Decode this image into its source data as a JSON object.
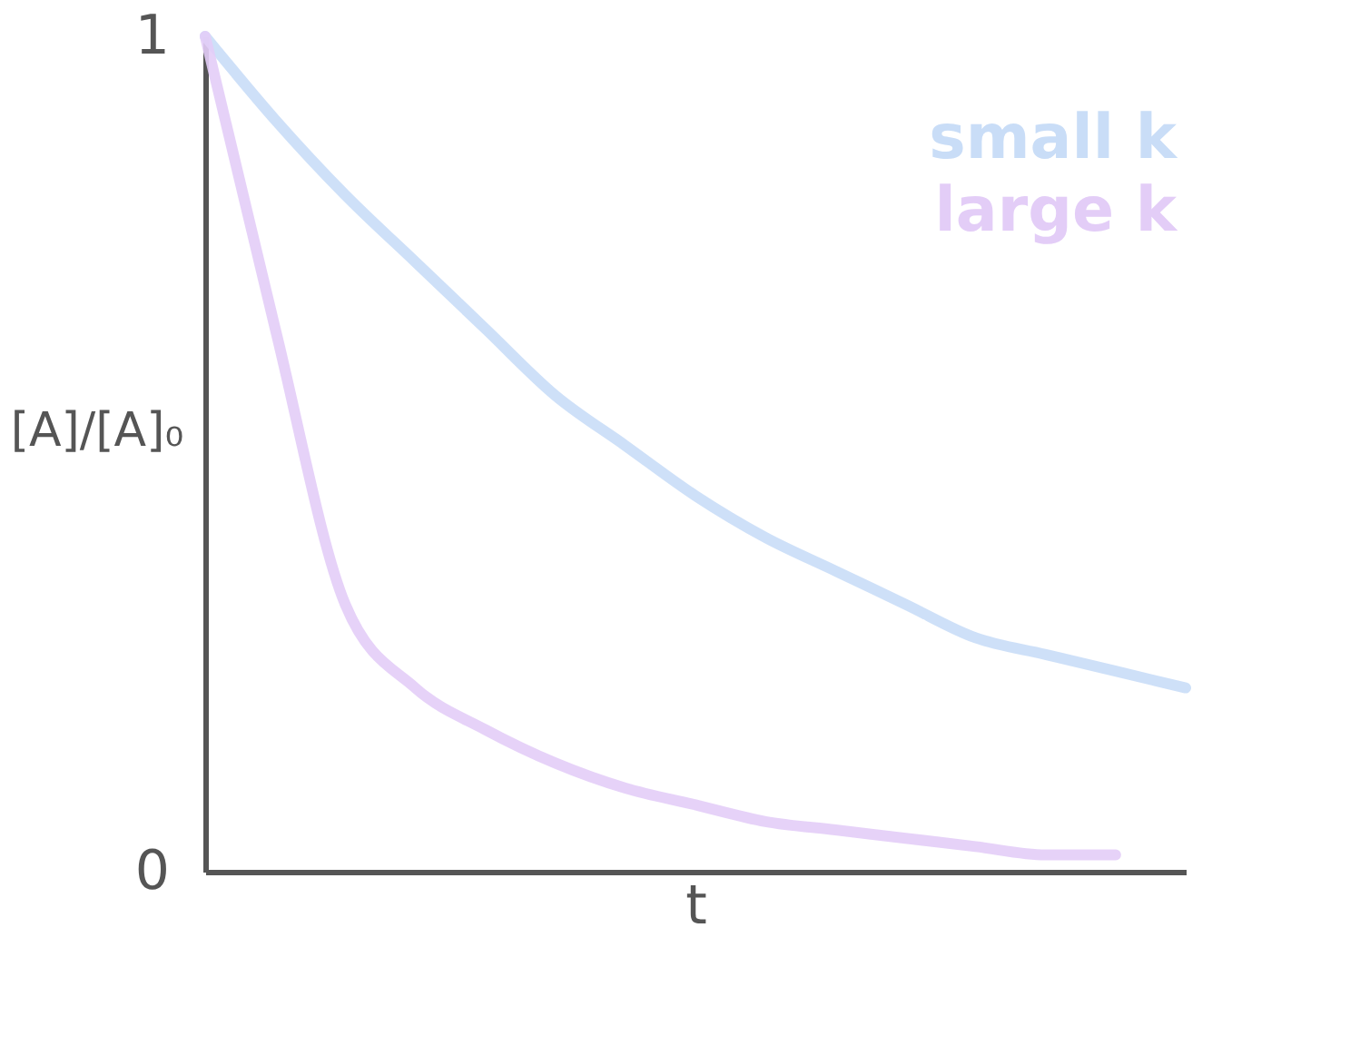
{
  "chart_data": {
    "type": "line",
    "categories": [
      null,
      null,
      null,
      null,
      null,
      null,
      null,
      null,
      null,
      null,
      null,
      null,
      null,
      null,
      null
    ],
    "series": [
      {
        "name": "small k",
        "color": "#c9ddf7",
        "values": [
          1.0,
          0.9,
          0.81,
          0.73,
          0.65,
          0.57,
          0.51,
          0.45,
          0.4,
          0.36,
          0.32,
          0.28,
          0.26,
          0.24,
          0.22
        ]
      },
      {
        "name": "large k",
        "color": "#e3cdf7",
        "values": [
          1.0,
          0.65,
          0.32,
          0.22,
          0.17,
          0.13,
          0.1,
          0.08,
          0.06,
          0.05,
          0.04,
          0.03,
          0.02,
          0.02,
          null
        ]
      }
    ],
    "xlabel": "t",
    "ylabel": "[A]/[A]₀",
    "ylim": [
      0,
      1
    ],
    "yticks": [
      0,
      1
    ],
    "grid": false,
    "legend": "top right",
    "line_style": "solid",
    "marker": "none",
    "tick_labels": "y"
  }
}
